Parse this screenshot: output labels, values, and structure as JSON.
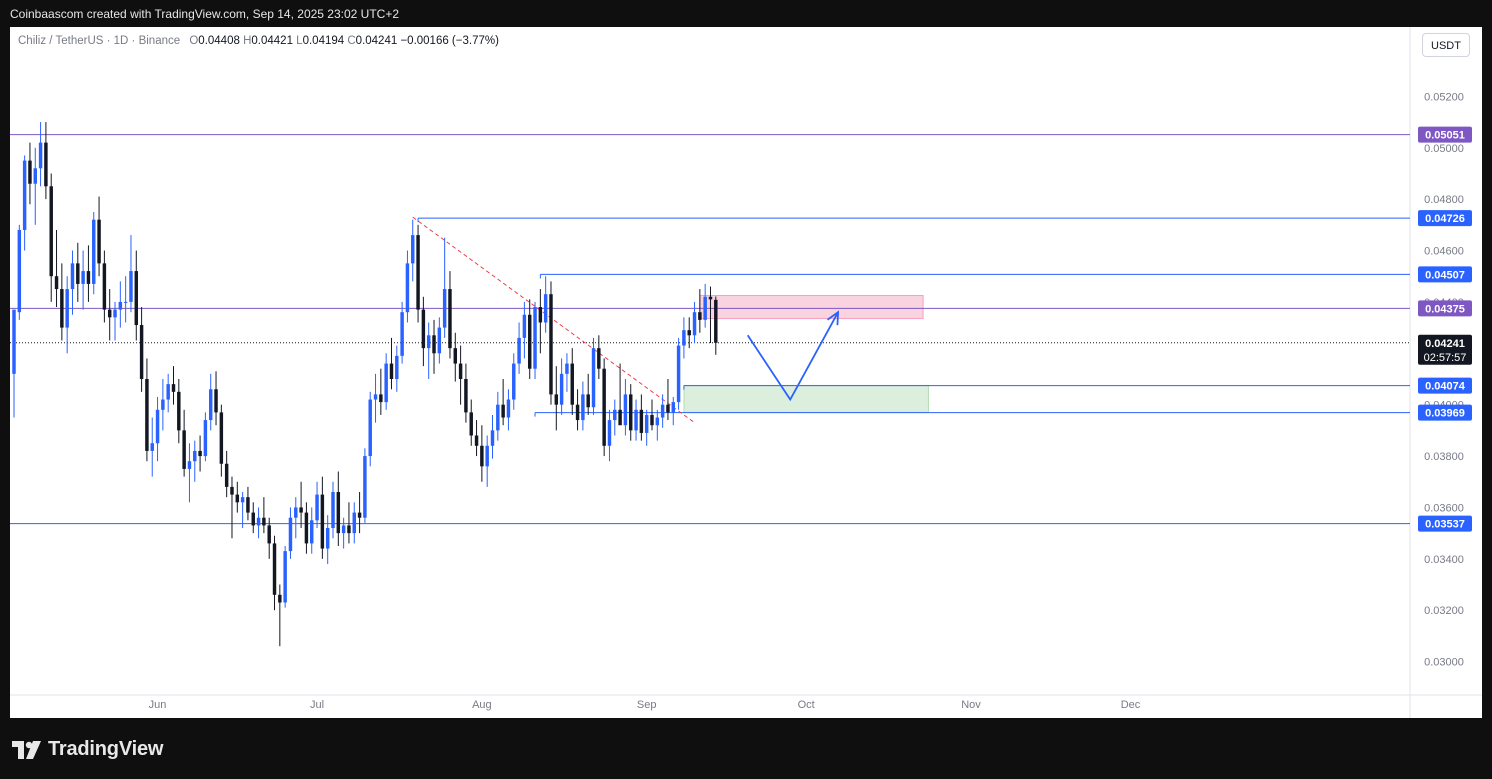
{
  "header": {
    "attribution": "Coinbaascom created with TradingView.com, Sep 14, 2025 23:02 UTC+2"
  },
  "legend": {
    "symbol": "Chiliz / TetherUS · 1D · Binance",
    "open_label": "O",
    "open": "0.04408",
    "high_label": "H",
    "high": "0.04421",
    "low_label": "L",
    "low": "0.04194",
    "close_label": "C",
    "close": "0.04241",
    "change": "−0.00166 (−3.77%)"
  },
  "currency_button": "USDT",
  "footer": {
    "brand": "TradingView"
  },
  "colors": {
    "up": "#2962ff",
    "down": "#131722",
    "line_blue": "#2962ff",
    "line_purple": "#7e57c2",
    "trend_red": "#f23645",
    "zone_pink": "#f8bbd0",
    "zone_green": "#c8e6c9",
    "axis_text": "#787b86"
  },
  "chart_data": {
    "type": "candlestick",
    "symbol": "Chiliz / TetherUS",
    "interval": "1D",
    "exchange": "Binance",
    "ylim": [
      0.0287,
      0.0547
    ],
    "y_ticks": [
      "0.05200",
      "0.05000",
      "0.04800",
      "0.04600",
      "0.04400",
      "0.04000",
      "0.03800",
      "0.03600",
      "0.03400",
      "0.03200",
      "0.03000"
    ],
    "x_ticks": [
      {
        "label": "Jun",
        "date": "2025-06-01"
      },
      {
        "label": "Jul",
        "date": "2025-07-01"
      },
      {
        "label": "Aug",
        "date": "2025-08-01"
      },
      {
        "label": "Sep",
        "date": "2025-09-01"
      },
      {
        "label": "Oct",
        "date": "2025-10-01"
      },
      {
        "label": "Nov",
        "date": "2025-11-01"
      },
      {
        "label": "Dec",
        "date": "2025-12-01"
      }
    ],
    "x_range": [
      "2025-05-05",
      "2025-12-31"
    ],
    "candles": [
      [
        "2025-05-05",
        0.0412,
        0.0437,
        0.0395,
        0.0437
      ],
      [
        "2025-05-06",
        0.0436,
        0.047,
        0.0433,
        0.0468
      ],
      [
        "2025-05-07",
        0.0468,
        0.0497,
        0.046,
        0.0495
      ],
      [
        "2025-05-08",
        0.0495,
        0.0502,
        0.0478,
        0.0486
      ],
      [
        "2025-05-09",
        0.0486,
        0.05,
        0.047,
        0.0492
      ],
      [
        "2025-05-10",
        0.0492,
        0.051,
        0.0485,
        0.0502
      ],
      [
        "2025-05-11",
        0.0502,
        0.051,
        0.048,
        0.0485
      ],
      [
        "2025-05-12",
        0.0485,
        0.049,
        0.044,
        0.045
      ],
      [
        "2025-05-13",
        0.045,
        0.0468,
        0.0438,
        0.0445
      ],
      [
        "2025-05-14",
        0.0445,
        0.0455,
        0.0425,
        0.043
      ],
      [
        "2025-05-15",
        0.043,
        0.045,
        0.042,
        0.0445
      ],
      [
        "2025-05-16",
        0.0445,
        0.046,
        0.0435,
        0.0455
      ],
      [
        "2025-05-17",
        0.0455,
        0.0463,
        0.044,
        0.0447
      ],
      [
        "2025-05-18",
        0.0447,
        0.046,
        0.0437,
        0.0452
      ],
      [
        "2025-05-19",
        0.0452,
        0.0462,
        0.044,
        0.0447
      ],
      [
        "2025-05-20",
        0.0447,
        0.0475,
        0.0443,
        0.0472
      ],
      [
        "2025-05-21",
        0.0472,
        0.0481,
        0.045,
        0.0455
      ],
      [
        "2025-05-22",
        0.0455,
        0.046,
        0.0432,
        0.0437
      ],
      [
        "2025-05-23",
        0.0437,
        0.0445,
        0.0425,
        0.0434
      ],
      [
        "2025-05-24",
        0.0434,
        0.044,
        0.0425,
        0.0437
      ],
      [
        "2025-05-25",
        0.0437,
        0.0448,
        0.043,
        0.044
      ],
      [
        "2025-05-26",
        0.044,
        0.045,
        0.0432,
        0.044
      ],
      [
        "2025-05-27",
        0.044,
        0.0466,
        0.0436,
        0.0452
      ],
      [
        "2025-05-28",
        0.0452,
        0.046,
        0.0425,
        0.0431
      ],
      [
        "2025-05-29",
        0.0431,
        0.0438,
        0.0405,
        0.041
      ],
      [
        "2025-05-30",
        0.041,
        0.0418,
        0.0378,
        0.0382
      ],
      [
        "2025-05-31",
        0.0382,
        0.0395,
        0.0372,
        0.0385
      ],
      [
        "2025-06-01",
        0.0385,
        0.0403,
        0.0378,
        0.0398
      ],
      [
        "2025-06-02",
        0.0398,
        0.041,
        0.039,
        0.0402
      ],
      [
        "2025-06-03",
        0.0402,
        0.0412,
        0.0397,
        0.0408
      ],
      [
        "2025-06-04",
        0.0408,
        0.0415,
        0.04,
        0.0405
      ],
      [
        "2025-06-05",
        0.0405,
        0.041,
        0.0385,
        0.039
      ],
      [
        "2025-06-06",
        0.039,
        0.0398,
        0.0372,
        0.0375
      ],
      [
        "2025-06-07",
        0.0375,
        0.0385,
        0.0362,
        0.0378
      ],
      [
        "2025-06-08",
        0.0378,
        0.0386,
        0.037,
        0.0382
      ],
      [
        "2025-06-09",
        0.0382,
        0.0388,
        0.0374,
        0.038
      ],
      [
        "2025-06-10",
        0.038,
        0.0397,
        0.0378,
        0.0394
      ],
      [
        "2025-06-11",
        0.0394,
        0.0412,
        0.039,
        0.0406
      ],
      [
        "2025-06-12",
        0.0406,
        0.0413,
        0.0392,
        0.0397
      ],
      [
        "2025-06-13",
        0.0397,
        0.04,
        0.0372,
        0.0377
      ],
      [
        "2025-06-14",
        0.0377,
        0.0382,
        0.0364,
        0.0368
      ],
      [
        "2025-06-15",
        0.0368,
        0.0372,
        0.0348,
        0.0365
      ],
      [
        "2025-06-16",
        0.0365,
        0.037,
        0.0358,
        0.0362
      ],
      [
        "2025-06-17",
        0.0362,
        0.0366,
        0.0352,
        0.0364
      ],
      [
        "2025-06-18",
        0.0364,
        0.0368,
        0.0355,
        0.0358
      ],
      [
        "2025-06-19",
        0.0358,
        0.0362,
        0.035,
        0.0353
      ],
      [
        "2025-06-20",
        0.0353,
        0.036,
        0.0348,
        0.0356
      ],
      [
        "2025-06-21",
        0.0356,
        0.0364,
        0.035,
        0.0353
      ],
      [
        "2025-06-22",
        0.0353,
        0.0356,
        0.034,
        0.0346
      ],
      [
        "2025-06-23",
        0.0346,
        0.0349,
        0.032,
        0.0326
      ],
      [
        "2025-06-24",
        0.0326,
        0.033,
        0.0306,
        0.0323
      ],
      [
        "2025-06-25",
        0.0323,
        0.0345,
        0.0321,
        0.0343
      ],
      [
        "2025-06-26",
        0.0343,
        0.036,
        0.034,
        0.0356
      ],
      [
        "2025-06-27",
        0.0356,
        0.0364,
        0.0348,
        0.036
      ],
      [
        "2025-06-28",
        0.036,
        0.037,
        0.0352,
        0.0358
      ],
      [
        "2025-06-29",
        0.0358,
        0.0362,
        0.0342,
        0.0346
      ],
      [
        "2025-06-30",
        0.0346,
        0.036,
        0.0342,
        0.0355
      ],
      [
        "2025-07-01",
        0.0355,
        0.037,
        0.0352,
        0.0365
      ],
      [
        "2025-07-02",
        0.0365,
        0.0372,
        0.034,
        0.0344
      ],
      [
        "2025-07-03",
        0.0344,
        0.0357,
        0.0338,
        0.0352
      ],
      [
        "2025-07-04",
        0.0352,
        0.037,
        0.0348,
        0.0366
      ],
      [
        "2025-07-05",
        0.0366,
        0.0374,
        0.0345,
        0.035
      ],
      [
        "2025-07-06",
        0.035,
        0.0356,
        0.0344,
        0.0353
      ],
      [
        "2025-07-07",
        0.0353,
        0.0362,
        0.0346,
        0.035
      ],
      [
        "2025-07-08",
        0.035,
        0.0362,
        0.0346,
        0.0358
      ],
      [
        "2025-07-09",
        0.0358,
        0.0366,
        0.035,
        0.0356
      ],
      [
        "2025-07-10",
        0.0356,
        0.0383,
        0.0354,
        0.038
      ],
      [
        "2025-07-11",
        0.038,
        0.0405,
        0.0376,
        0.0402
      ],
      [
        "2025-07-12",
        0.0402,
        0.0412,
        0.0393,
        0.0404
      ],
      [
        "2025-07-13",
        0.0404,
        0.0414,
        0.0396,
        0.0401
      ],
      [
        "2025-07-14",
        0.0401,
        0.042,
        0.0398,
        0.0416
      ],
      [
        "2025-07-15",
        0.0416,
        0.0426,
        0.0406,
        0.041
      ],
      [
        "2025-07-16",
        0.041,
        0.0423,
        0.0405,
        0.0419
      ],
      [
        "2025-07-17",
        0.0419,
        0.044,
        0.0416,
        0.0436
      ],
      [
        "2025-07-18",
        0.0436,
        0.046,
        0.0432,
        0.0455
      ],
      [
        "2025-07-19",
        0.0455,
        0.0472,
        0.0448,
        0.0466
      ],
      [
        "2025-07-20",
        0.0466,
        0.047,
        0.0432,
        0.0437
      ],
      [
        "2025-07-21",
        0.0437,
        0.0442,
        0.0415,
        0.0422
      ],
      [
        "2025-07-22",
        0.0422,
        0.0432,
        0.041,
        0.0427
      ],
      [
        "2025-07-23",
        0.0427,
        0.0433,
        0.0412,
        0.042
      ],
      [
        "2025-07-24",
        0.042,
        0.0434,
        0.0416,
        0.043
      ],
      [
        "2025-07-25",
        0.043,
        0.0465,
        0.0426,
        0.0445
      ],
      [
        "2025-07-26",
        0.0445,
        0.0452,
        0.0418,
        0.0422
      ],
      [
        "2025-07-27",
        0.0422,
        0.0428,
        0.0409,
        0.0416
      ],
      [
        "2025-07-28",
        0.0416,
        0.0423,
        0.04,
        0.041
      ],
      [
        "2025-07-29",
        0.041,
        0.0416,
        0.0393,
        0.0397
      ],
      [
        "2025-07-30",
        0.0397,
        0.0402,
        0.0384,
        0.0388
      ],
      [
        "2025-07-31",
        0.0388,
        0.0394,
        0.038,
        0.0384
      ],
      [
        "2025-08-01",
        0.0384,
        0.0392,
        0.037,
        0.0376
      ],
      [
        "2025-08-02",
        0.0376,
        0.0388,
        0.0368,
        0.0384
      ],
      [
        "2025-08-03",
        0.0384,
        0.0396,
        0.0379,
        0.039
      ],
      [
        "2025-08-04",
        0.039,
        0.0405,
        0.0386,
        0.04
      ],
      [
        "2025-08-05",
        0.04,
        0.041,
        0.0392,
        0.0395
      ],
      [
        "2025-08-06",
        0.0395,
        0.0406,
        0.039,
        0.0402
      ],
      [
        "2025-08-07",
        0.0402,
        0.042,
        0.0398,
        0.0416
      ],
      [
        "2025-08-08",
        0.0416,
        0.0432,
        0.0412,
        0.0426
      ],
      [
        "2025-08-09",
        0.0426,
        0.044,
        0.0418,
        0.0435
      ],
      [
        "2025-08-10",
        0.0435,
        0.0441,
        0.041,
        0.0414
      ],
      [
        "2025-08-11",
        0.0414,
        0.044,
        0.041,
        0.0438
      ],
      [
        "2025-08-12",
        0.0438,
        0.0445,
        0.042,
        0.0432
      ],
      [
        "2025-08-13",
        0.0432,
        0.045,
        0.0428,
        0.0443
      ],
      [
        "2025-08-14",
        0.0443,
        0.0448,
        0.04,
        0.0404
      ],
      [
        "2025-08-15",
        0.0404,
        0.0415,
        0.039,
        0.04
      ],
      [
        "2025-08-16",
        0.04,
        0.0418,
        0.0396,
        0.0412
      ],
      [
        "2025-08-17",
        0.0412,
        0.042,
        0.0405,
        0.0416
      ],
      [
        "2025-08-18",
        0.0416,
        0.0422,
        0.0396,
        0.04
      ],
      [
        "2025-08-19",
        0.04,
        0.0406,
        0.039,
        0.0394
      ],
      [
        "2025-08-20",
        0.0394,
        0.0409,
        0.039,
        0.0404
      ],
      [
        "2025-08-21",
        0.0404,
        0.0412,
        0.0396,
        0.0399
      ],
      [
        "2025-08-22",
        0.0399,
        0.0426,
        0.0396,
        0.0422
      ],
      [
        "2025-08-23",
        0.0422,
        0.0427,
        0.041,
        0.0414
      ],
      [
        "2025-08-24",
        0.0414,
        0.0418,
        0.038,
        0.0384
      ],
      [
        "2025-08-25",
        0.0384,
        0.0398,
        0.0378,
        0.0394
      ],
      [
        "2025-08-26",
        0.0394,
        0.0402,
        0.0388,
        0.0398
      ],
      [
        "2025-08-27",
        0.0398,
        0.0416,
        0.0394,
        0.0392
      ],
      [
        "2025-08-28",
        0.0392,
        0.041,
        0.0388,
        0.0404
      ],
      [
        "2025-08-29",
        0.0404,
        0.0408,
        0.0386,
        0.039
      ],
      [
        "2025-08-30",
        0.039,
        0.0402,
        0.0386,
        0.0398
      ],
      [
        "2025-08-31",
        0.0398,
        0.0404,
        0.0386,
        0.0389
      ],
      [
        "2025-09-01",
        0.0389,
        0.0398,
        0.0384,
        0.0396
      ],
      [
        "2025-09-02",
        0.0396,
        0.0402,
        0.039,
        0.0392
      ],
      [
        "2025-09-03",
        0.0392,
        0.0398,
        0.0386,
        0.0395
      ],
      [
        "2025-09-04",
        0.0395,
        0.0404,
        0.0391,
        0.04
      ],
      [
        "2025-09-05",
        0.04,
        0.041,
        0.0394,
        0.0397
      ],
      [
        "2025-09-06",
        0.0397,
        0.0403,
        0.0392,
        0.0401
      ],
      [
        "2025-09-07",
        0.0401,
        0.0426,
        0.0398,
        0.0423
      ],
      [
        "2025-09-08",
        0.0423,
        0.0434,
        0.0418,
        0.0429
      ],
      [
        "2025-09-09",
        0.0429,
        0.0434,
        0.0422,
        0.0427
      ],
      [
        "2025-09-10",
        0.0427,
        0.044,
        0.0424,
        0.0436
      ],
      [
        "2025-09-11",
        0.0436,
        0.0445,
        0.0428,
        0.0433
      ],
      [
        "2025-09-12",
        0.0433,
        0.0447,
        0.043,
        0.0442
      ],
      [
        "2025-09-13",
        0.0442,
        0.0446,
        0.0424,
        0.0441
      ],
      [
        "2025-09-14",
        0.04408,
        0.04421,
        0.04194,
        0.04241
      ]
    ],
    "horizontal_levels": [
      {
        "label": "0.05051",
        "value": 0.05051,
        "color": "#7e57c2"
      },
      {
        "label": "0.04726",
        "value": 0.04726,
        "color": "#2962ff",
        "from": "2025-07-20"
      },
      {
        "label": "0.04507",
        "value": 0.04507,
        "color": "#2962ff",
        "from": "2025-08-12"
      },
      {
        "label": "0.04375",
        "value": 0.04375,
        "color": "#7e57c2"
      },
      {
        "label": "0.04074",
        "value": 0.04074,
        "color": "#2962ff",
        "from": "2025-09-08"
      },
      {
        "label": "0.03969",
        "value": 0.03969,
        "color": "#2962ff",
        "from": "2025-08-11"
      },
      {
        "label": "0.03537",
        "value": 0.03537,
        "color": "#2962ff"
      }
    ],
    "current_price": {
      "label": "0.04241",
      "countdown": "02:57:57",
      "value": 0.04241
    },
    "trendline": {
      "from": [
        "2025-07-19",
        0.0473
      ],
      "to": [
        "2025-09-10",
        0.0393
      ],
      "style": "dashed",
      "color": "#f23645"
    },
    "zones": [
      {
        "name": "resistance",
        "from": "2025-09-11",
        "to": "2025-10-23",
        "top": 0.04425,
        "bottom": 0.04335,
        "color": "#f8bbd0"
      },
      {
        "name": "support",
        "from": "2025-09-08",
        "to": "2025-10-24",
        "top": 0.04075,
        "bottom": 0.0397,
        "color": "#c8e6c9"
      }
    ],
    "projection": [
      [
        "2025-09-20",
        0.0427
      ],
      [
        "2025-09-28",
        0.0402
      ],
      [
        "2025-10-07",
        0.0436
      ]
    ]
  }
}
